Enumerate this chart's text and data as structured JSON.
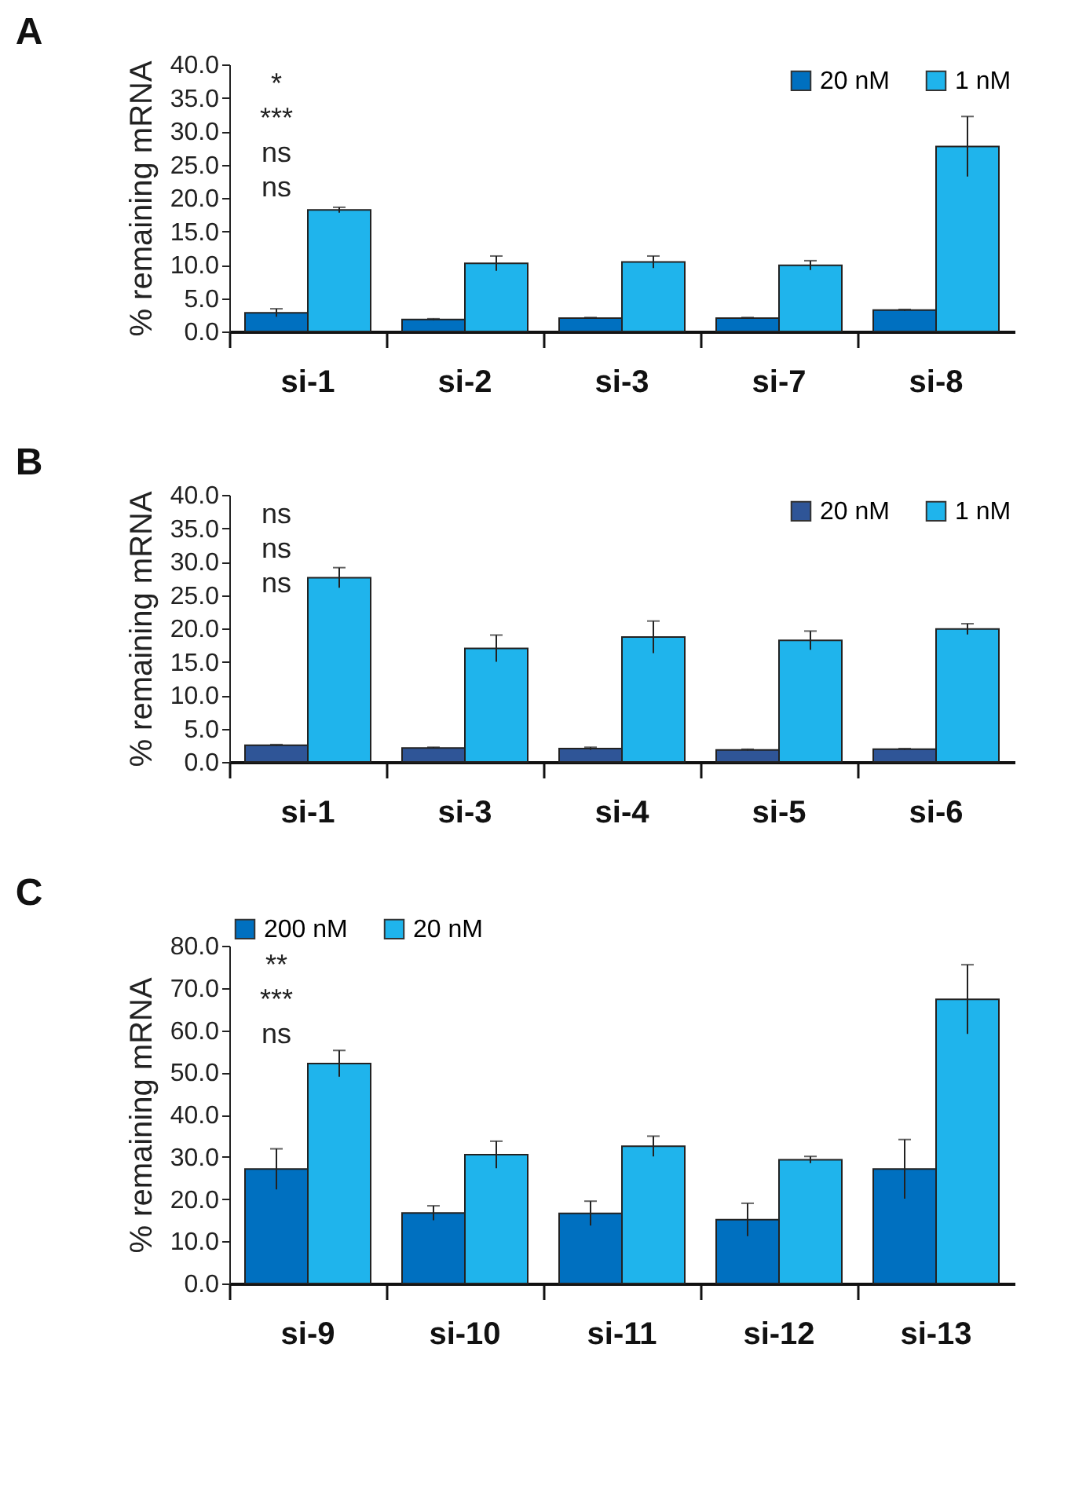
{
  "chart_data": [
    {
      "type": "bar",
      "title": "A",
      "ylabel": "% remaining mRNA",
      "categories": [
        "si-1",
        "si-2",
        "si-3",
        "si-7",
        "si-8"
      ],
      "series": [
        {
          "name": "20 nM",
          "color": "#0070c0",
          "values": [
            2.8,
            1.8,
            2.0,
            2.0,
            3.2
          ],
          "errors": [
            0.6,
            0.1,
            0.1,
            0.1,
            0.1
          ]
        },
        {
          "name": "1 nM",
          "color": "#1fb4ec",
          "values": [
            18.2,
            10.2,
            10.4,
            9.9,
            27.7
          ],
          "errors": [
            0.4,
            1.1,
            0.9,
            0.7,
            4.5
          ]
        }
      ],
      "ylim": [
        0,
        40
      ],
      "yticks": [
        {
          "value": 0,
          "label": "0.0"
        },
        {
          "value": 5,
          "label": "5.0"
        },
        {
          "value": 10,
          "label": "10.0"
        },
        {
          "value": 15,
          "label": "15.0"
        },
        {
          "value": 20,
          "label": "20.0"
        },
        {
          "value": 25,
          "label": "25.0"
        },
        {
          "value": 30,
          "label": "30.0"
        },
        {
          "value": 35,
          "label": "35.0"
        },
        {
          "value": 40,
          "label": "40.0"
        }
      ],
      "annotations": [
        "*",
        "***",
        "ns",
        "ns"
      ],
      "legend": "top right"
    },
    {
      "type": "bar",
      "title": "B",
      "ylabel": "% remaining mRNA",
      "categories": [
        "si-1",
        "si-3",
        "si-4",
        "si-5",
        "si-6"
      ],
      "series": [
        {
          "name": "20 nM",
          "color": "#2f5597",
          "values": [
            2.5,
            2.1,
            2.0,
            1.8,
            1.9
          ],
          "errors": [
            0.1,
            0.1,
            0.2,
            0.1,
            0.1
          ]
        },
        {
          "name": "1 nM",
          "color": "#1fb4ec",
          "values": [
            27.6,
            17.0,
            18.7,
            18.2,
            19.9
          ],
          "errors": [
            1.5,
            2.0,
            2.4,
            1.4,
            0.8
          ]
        }
      ],
      "ylim": [
        0,
        40
      ],
      "yticks": [
        {
          "value": 0,
          "label": "0.0"
        },
        {
          "value": 5,
          "label": "5.0"
        },
        {
          "value": 10,
          "label": "10.0"
        },
        {
          "value": 15,
          "label": "15.0"
        },
        {
          "value": 20,
          "label": "20.0"
        },
        {
          "value": 25,
          "label": "25.0"
        },
        {
          "value": 30,
          "label": "30.0"
        },
        {
          "value": 35,
          "label": "35.0"
        },
        {
          "value": 40,
          "label": "40.0"
        }
      ],
      "annotations": [
        "ns",
        "ns",
        "ns"
      ],
      "legend": "top right"
    },
    {
      "type": "bar",
      "title": "C",
      "ylabel": "% remaining mRNA",
      "categories": [
        "si-9",
        "si-10",
        "si-11",
        "si-12",
        "si-13"
      ],
      "series": [
        {
          "name": "200 nM",
          "color": "#0070c0",
          "values": [
            27.1,
            16.7,
            16.6,
            15.1,
            27.1
          ],
          "errors": [
            4.8,
            1.7,
            2.9,
            3.9,
            7.0
          ]
        },
        {
          "name": "20 nM",
          "color": "#1fb4ec",
          "values": [
            52.1,
            30.5,
            32.5,
            29.3,
            67.3
          ],
          "errors": [
            3.1,
            3.2,
            2.4,
            0.8,
            8.2
          ]
        }
      ],
      "ylim": [
        0,
        80
      ],
      "yticks": [
        {
          "value": 0,
          "label": "0.0"
        },
        {
          "value": 10,
          "label": "10.0"
        },
        {
          "value": 20,
          "label": "20.0"
        },
        {
          "value": 30,
          "label": "30.0"
        },
        {
          "value": 40,
          "label": "40.0"
        },
        {
          "value": 50,
          "label": "50.0"
        },
        {
          "value": 60,
          "label": "60.0"
        },
        {
          "value": 70,
          "label": "70.0"
        },
        {
          "value": 80,
          "label": "80.0"
        }
      ],
      "annotations": [
        "**",
        "***",
        "ns"
      ],
      "legend": "top"
    }
  ]
}
